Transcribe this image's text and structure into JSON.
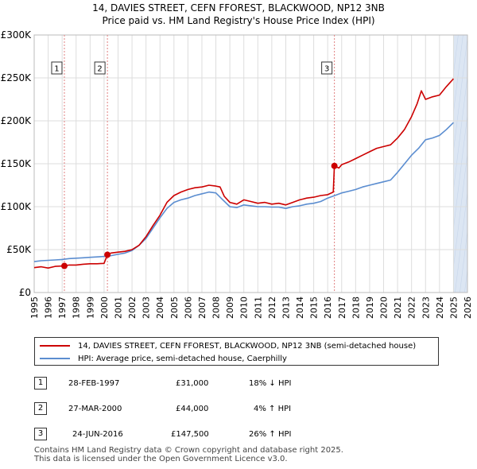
{
  "title_line1": "14, DAVIES STREET, CEFN FFOREST, BLACKWOOD, NP12 3NB",
  "title_line2": "Price paid vs. HM Land Registry's House Price Index (HPI)",
  "colors": {
    "price": "#cc0000",
    "hpi": "#5b8dd0",
    "grid": "#dddddd",
    "shade": "#dce6f3"
  },
  "chart_data": {
    "type": "line",
    "title": "14, DAVIES STREET, CEFN FFOREST, BLACKWOOD, NP12 3NB",
    "subtitle": "Price paid vs. HM Land Registry's House Price Index (HPI)",
    "xlabel": "",
    "ylabel": "",
    "xlim": [
      1995,
      2026
    ],
    "ylim": [
      0,
      300000
    ],
    "y_ticks": [
      0,
      50000,
      100000,
      150000,
      200000,
      250000,
      300000
    ],
    "y_tick_labels": [
      "£0",
      "£50K",
      "£100K",
      "£150K",
      "£200K",
      "£250K",
      "£300K"
    ],
    "x_ticks": [
      1995,
      1996,
      1997,
      1998,
      1999,
      2000,
      2001,
      2002,
      2003,
      2004,
      2005,
      2006,
      2007,
      2008,
      2009,
      2010,
      2011,
      2012,
      2013,
      2014,
      2015,
      2016,
      2017,
      2018,
      2019,
      2020,
      2021,
      2022,
      2023,
      2024,
      2025,
      2026
    ],
    "x_tick_labels": [
      "1995",
      "1996",
      "1997",
      "1998",
      "1999",
      "2000",
      "2001",
      "2002",
      "2003",
      "2004",
      "2005",
      "2006",
      "2007",
      "2008",
      "2009",
      "2010",
      "2011",
      "2012",
      "2013",
      "2014",
      "2015",
      "2016",
      "2017",
      "2018",
      "2019",
      "2020",
      "2021",
      "2022",
      "2023",
      "2024",
      "2025",
      "2026"
    ],
    "forecast_shade_start": 2025.0,
    "series": [
      {
        "name": "14, DAVIES STREET, CEFN FFOREST, BLACKWOOD, NP12 3NB (semi-detached house)",
        "color": "#cc0000",
        "x": [
          1995.0,
          1995.5,
          1996.0,
          1996.5,
          1997.16,
          1997.5,
          1998.0,
          1998.5,
          1999.0,
          1999.5,
          2000.0,
          2000.24,
          2000.5,
          2001.0,
          2001.5,
          2002.0,
          2002.5,
          2003.0,
          2003.5,
          2004.0,
          2004.5,
          2005.0,
          2005.5,
          2006.0,
          2006.5,
          2007.0,
          2007.5,
          2008.0,
          2008.3,
          2008.6,
          2009.0,
          2009.5,
          2010.0,
          2010.5,
          2011.0,
          2011.5,
          2012.0,
          2012.5,
          2013.0,
          2013.5,
          2014.0,
          2014.5,
          2015.0,
          2015.5,
          2016.0,
          2016.4,
          2016.48,
          2016.8,
          2017.0,
          2017.5,
          2018.0,
          2018.5,
          2019.0,
          2019.5,
          2020.0,
          2020.5,
          2021.0,
          2021.5,
          2022.0,
          2022.4,
          2022.7,
          2023.0,
          2023.5,
          2024.0,
          2024.5,
          2025.0
        ],
        "y": [
          29000,
          30000,
          28500,
          30500,
          31000,
          32000,
          32000,
          33000,
          33500,
          33500,
          34000,
          44000,
          46000,
          47000,
          48000,
          50000,
          55000,
          65000,
          78000,
          90000,
          105000,
          113000,
          117000,
          120000,
          122000,
          123000,
          125000,
          124000,
          123000,
          112000,
          105000,
          103000,
          108000,
          106000,
          104000,
          105000,
          103000,
          104000,
          102000,
          105000,
          108000,
          110000,
          111000,
          113000,
          114000,
          117000,
          147500,
          145000,
          149000,
          152000,
          156000,
          160000,
          164000,
          168000,
          170000,
          172000,
          180000,
          190000,
          205000,
          220000,
          235000,
          225000,
          228000,
          230000,
          240000,
          249000
        ]
      },
      {
        "name": "HPI: Average price, semi-detached house, Caerphilly",
        "color": "#5b8dd0",
        "x": [
          1995.0,
          1995.5,
          1996.0,
          1996.5,
          1997.0,
          1997.5,
          1998.0,
          1998.5,
          1999.0,
          1999.5,
          2000.0,
          2000.5,
          2001.0,
          2001.5,
          2002.0,
          2002.5,
          2003.0,
          2003.5,
          2004.0,
          2004.5,
          2005.0,
          2005.5,
          2006.0,
          2006.5,
          2007.0,
          2007.5,
          2008.0,
          2008.5,
          2009.0,
          2009.5,
          2010.0,
          2010.5,
          2011.0,
          2011.5,
          2012.0,
          2012.5,
          2013.0,
          2013.5,
          2014.0,
          2014.5,
          2015.0,
          2015.5,
          2016.0,
          2016.5,
          2017.0,
          2017.5,
          2018.0,
          2018.5,
          2019.0,
          2019.5,
          2020.0,
          2020.5,
          2021.0,
          2021.5,
          2022.0,
          2022.5,
          2023.0,
          2023.5,
          2024.0,
          2024.5,
          2025.0
        ],
        "y": [
          36000,
          37000,
          37500,
          38000,
          38500,
          39500,
          40000,
          40500,
          41000,
          41500,
          42000,
          43000,
          44500,
          46000,
          49000,
          55000,
          63000,
          75000,
          87000,
          98000,
          105000,
          108000,
          110000,
          113000,
          115000,
          117000,
          116000,
          108000,
          100000,
          99000,
          102000,
          101000,
          100000,
          100000,
          99500,
          99500,
          98000,
          100000,
          101000,
          103000,
          104000,
          106000,
          110000,
          113000,
          116000,
          118000,
          120000,
          123000,
          125000,
          127000,
          129000,
          131000,
          140000,
          150000,
          160000,
          168000,
          178000,
          180000,
          183000,
          190000,
          198000
        ]
      }
    ],
    "sale_markers": [
      {
        "label": "1",
        "x": 1997.16,
        "y": 31000
      },
      {
        "label": "2",
        "x": 2000.24,
        "y": 44000
      },
      {
        "label": "3",
        "x": 2016.48,
        "y": 147500
      }
    ]
  },
  "legend": {
    "price_label": "14, DAVIES STREET, CEFN FFOREST, BLACKWOOD, NP12 3NB (semi-detached house)",
    "hpi_label": "HPI: Average price, semi-detached house, Caerphilly"
  },
  "sales": [
    {
      "num": "1",
      "date": "28-FEB-1997",
      "price": "£31,000",
      "hpi": "18% ↓ HPI"
    },
    {
      "num": "2",
      "date": "27-MAR-2000",
      "price": "£44,000",
      "hpi": "4% ↑ HPI"
    },
    {
      "num": "3",
      "date": "24-JUN-2016",
      "price": "£147,500",
      "hpi": "26% ↑ HPI"
    }
  ],
  "footer": {
    "line1": "Contains HM Land Registry data © Crown copyright and database right 2025.",
    "line2": "This data is licensed under the Open Government Licence v3.0."
  }
}
